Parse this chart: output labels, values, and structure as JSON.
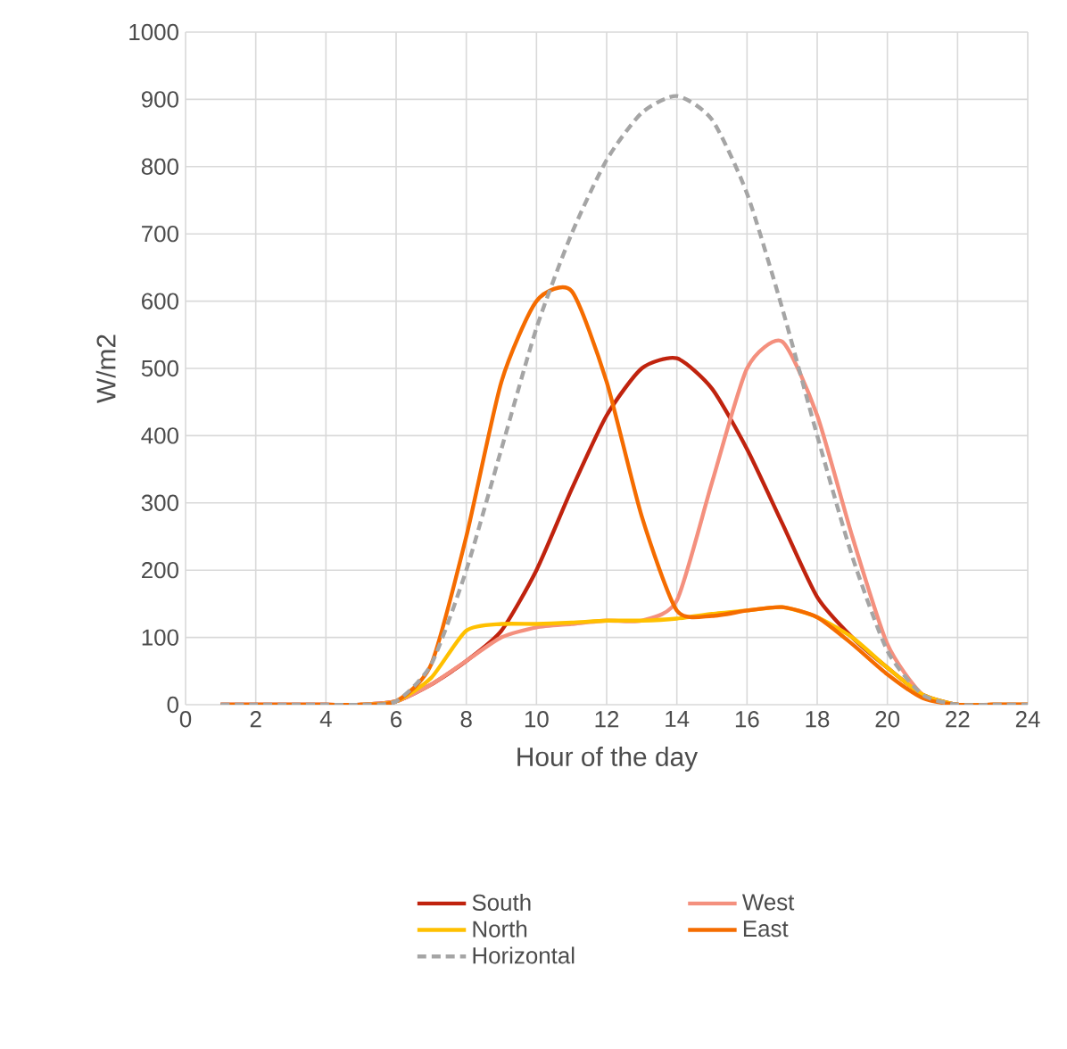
{
  "chart_data": {
    "type": "line",
    "xlabel": "Hour of the day",
    "ylabel": "W/m2",
    "x": [
      1,
      2,
      3,
      4,
      5,
      6,
      7,
      8,
      9,
      10,
      11,
      12,
      13,
      14,
      15,
      16,
      17,
      18,
      19,
      20,
      21,
      22,
      23,
      24
    ],
    "xlim": [
      0,
      24
    ],
    "xticks": [
      0,
      2,
      4,
      6,
      8,
      10,
      12,
      14,
      16,
      18,
      20,
      22,
      24
    ],
    "ylim": [
      0,
      1000
    ],
    "yticks": [
      0,
      100,
      200,
      300,
      400,
      500,
      600,
      700,
      800,
      900,
      1000
    ],
    "grid": true,
    "legend": "bottom",
    "marker": "none",
    "series": [
      {
        "name": "South",
        "color": "#c0230e",
        "line_style": "solid",
        "values": [
          0,
          0,
          0,
          0,
          0,
          5,
          30,
          65,
          110,
          200,
          320,
          430,
          500,
          515,
          470,
          380,
          270,
          160,
          100,
          55,
          15,
          0,
          0,
          0
        ]
      },
      {
        "name": "West",
        "color": "#f4907e",
        "line_style": "solid",
        "values": [
          0,
          0,
          0,
          0,
          0,
          5,
          30,
          65,
          100,
          115,
          120,
          125,
          125,
          155,
          330,
          500,
          540,
          430,
          250,
          90,
          15,
          0,
          0,
          0
        ]
      },
      {
        "name": "North",
        "color": "#ffc000",
        "line_style": "solid",
        "values": [
          null,
          null,
          null,
          null,
          0,
          5,
          40,
          110,
          120,
          120,
          122,
          125,
          125,
          128,
          135,
          140,
          145,
          130,
          100,
          55,
          15,
          0,
          0,
          0
        ]
      },
      {
        "name": "East",
        "color": "#f56c00",
        "line_style": "solid",
        "values": [
          0,
          0,
          0,
          0,
          0,
          5,
          60,
          250,
          480,
          600,
          615,
          480,
          280,
          140,
          132,
          140,
          145,
          130,
          90,
          45,
          10,
          0,
          0,
          0
        ]
      },
      {
        "name": "Horizontal",
        "color": "#a5a5a5",
        "line_style": "dashed",
        "values": [
          0,
          0,
          0,
          0,
          0,
          5,
          60,
          200,
          380,
          560,
          700,
          810,
          880,
          905,
          870,
          760,
          590,
          400,
          220,
          80,
          15,
          0,
          0,
          0
        ]
      }
    ]
  }
}
